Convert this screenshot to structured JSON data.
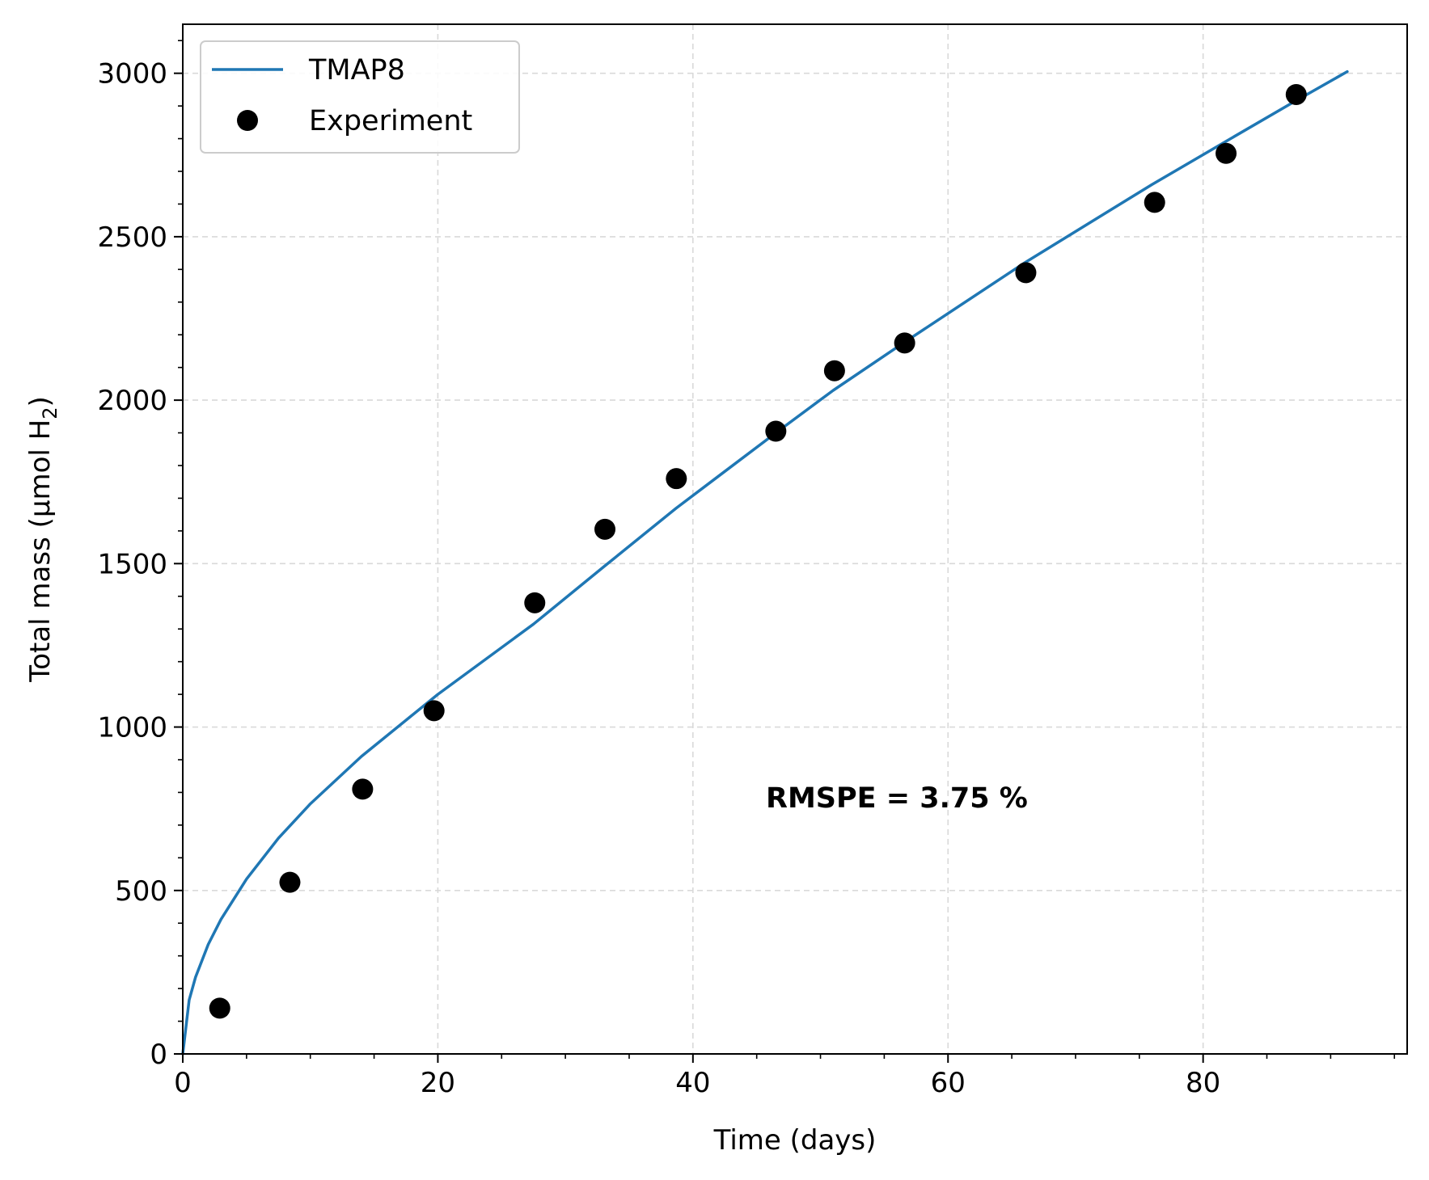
{
  "chart_data": {
    "type": "line",
    "title": "",
    "xlabel": "Time (days)",
    "ylabel_main": "Total mass (μmol H",
    "ylabel_subscript": "2",
    "ylabel_close": ")",
    "xlim": [
      0,
      96
    ],
    "ylim": [
      0,
      3150
    ],
    "xticks": [
      0,
      20,
      40,
      60,
      80
    ],
    "yticks": [
      0,
      500,
      1000,
      1500,
      2000,
      2500,
      3000
    ],
    "grid": true,
    "legend_position": "top-left",
    "annotation": "RMSPE = 3.75 %",
    "colors": {
      "model": "#1f77b4",
      "experiment": "#000000",
      "grid": "#d9d9d9"
    },
    "series": [
      {
        "name": "TMAP8",
        "kind": "line",
        "x": [
          0,
          0.5,
          1,
          2,
          3,
          5,
          7.5,
          10,
          14,
          20,
          27.5,
          33,
          38.7,
          46.5,
          51,
          56.5,
          66,
          76,
          81.5,
          87,
          91.3
        ],
        "y": [
          0,
          165,
          235,
          335,
          412,
          535,
          660,
          765,
          910,
          1100,
          1315,
          1490,
          1670,
          1900,
          2030,
          2175,
          2420,
          2660,
          2785,
          2910,
          3005
        ]
      },
      {
        "name": "Experiment",
        "kind": "scatter",
        "x": [
          2.9,
          8.4,
          14.1,
          19.7,
          27.6,
          33.1,
          38.7,
          46.5,
          51.1,
          56.6,
          66.1,
          76.2,
          81.8,
          87.3
        ],
        "y": [
          140,
          525,
          810,
          1050,
          1380,
          1605,
          1760,
          1905,
          2090,
          2175,
          2390,
          2605,
          2755,
          2935
        ]
      }
    ]
  }
}
